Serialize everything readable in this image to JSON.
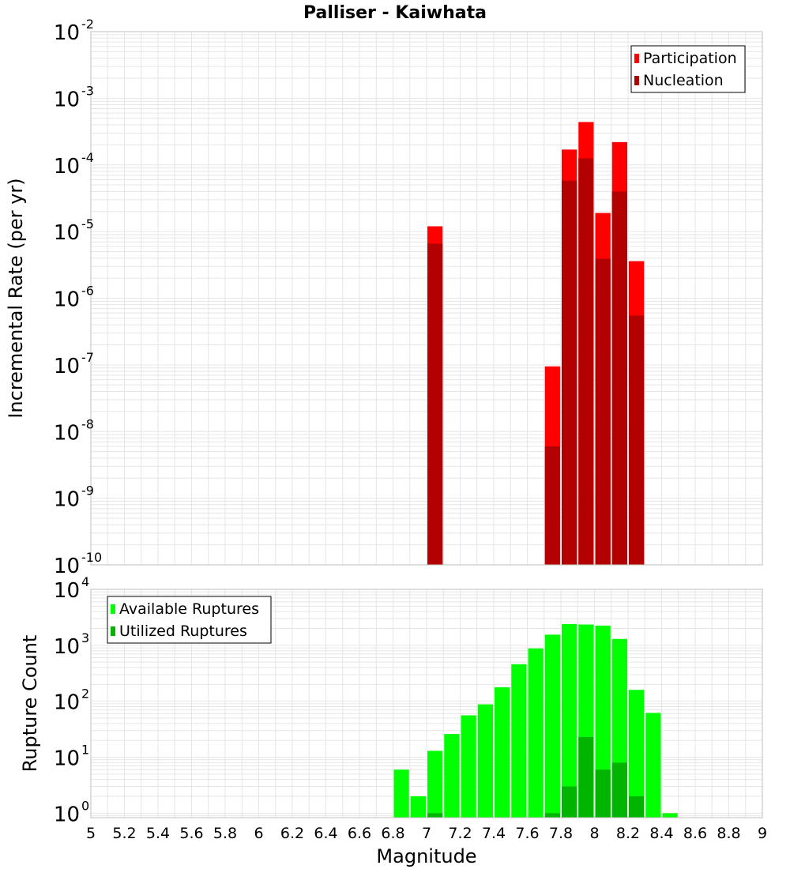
{
  "title": "Palliser - Kaiwhata",
  "colors": {
    "participation": "#ff0000",
    "nucleation": "#b30000",
    "available": "#00ff00",
    "utilized": "#00b400",
    "grid": "#e6e6e6",
    "frame": "#bfbfbf"
  },
  "chart_data": [
    {
      "type": "bar",
      "panel": "rate",
      "ylabel": "Incremental Rate (per yr)",
      "yscale": "log",
      "ylim_exp": [
        -10,
        -2
      ],
      "ytick_exps": [
        -10,
        -9,
        -8,
        -7,
        -6,
        -5,
        -4,
        -3,
        -2
      ],
      "xlim": [
        5,
        9
      ],
      "bin_width": 0.1,
      "legend": [
        "Participation",
        "Nucleation"
      ],
      "legend_position": "top-right",
      "series": [
        {
          "name": "Participation",
          "x": [
            7.05,
            7.75,
            7.85,
            7.95,
            8.05,
            8.15,
            8.25
          ],
          "values": [
            1.2e-05,
            9.5e-08,
            0.00017,
            0.00044,
            1.9e-05,
            0.00022,
            3.6e-06
          ]
        },
        {
          "name": "Nucleation",
          "x": [
            7.05,
            7.75,
            7.85,
            7.95,
            8.05,
            8.15,
            8.25
          ],
          "values": [
            6.6e-06,
            6e-09,
            5.8e-05,
            0.000125,
            3.9e-06,
            4e-05,
            5.5e-07
          ]
        }
      ]
    },
    {
      "type": "bar",
      "panel": "count",
      "ylabel": "Rupture Count",
      "xlabel": "Magnitude",
      "yscale": "log",
      "ylim_exp": [
        -0.08,
        4
      ],
      "ytick_exps": [
        0,
        1,
        2,
        3,
        4
      ],
      "xlim": [
        5,
        9
      ],
      "bin_width": 0.1,
      "xticks": [
        "5",
        "5.2",
        "5.4",
        "5.6",
        "5.8",
        "6",
        "6.2",
        "6.4",
        "6.6",
        "6.8",
        "7",
        "7.2",
        "7.4",
        "7.6",
        "7.8",
        "8",
        "8.2",
        "8.4",
        "8.6",
        "8.8",
        "9"
      ],
      "legend": [
        "Available Ruptures",
        "Utilized Ruptures"
      ],
      "legend_position": "top-left",
      "series": [
        {
          "name": "Available Ruptures",
          "x": [
            6.85,
            6.95,
            7.05,
            7.15,
            7.25,
            7.35,
            7.45,
            7.55,
            7.65,
            7.75,
            7.85,
            7.95,
            8.05,
            8.15,
            8.25,
            8.35,
            8.45
          ],
          "values": [
            6,
            2,
            13,
            26,
            56,
            88,
            178,
            460,
            880,
            1550,
            2400,
            2350,
            2250,
            1300,
            160,
            62,
            1
          ]
        },
        {
          "name": "Utilized Ruptures",
          "x": [
            7.05,
            7.75,
            7.85,
            7.95,
            8.05,
            8.15,
            8.25
          ],
          "values": [
            1,
            1,
            3,
            23,
            6,
            8,
            2
          ]
        }
      ]
    }
  ]
}
